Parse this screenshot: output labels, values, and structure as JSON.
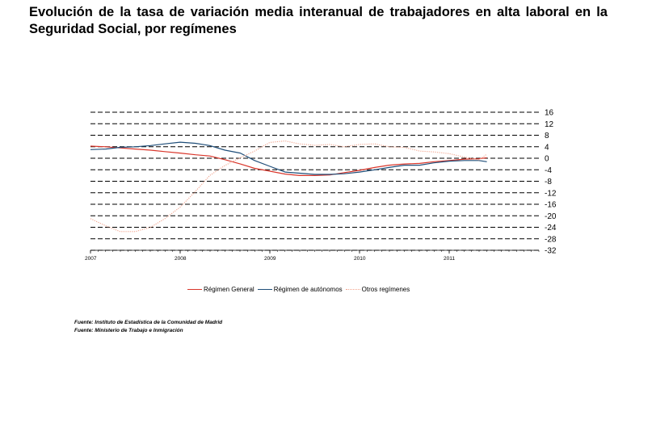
{
  "page": {
    "title": "Evolución de la tasa de variación media interanual de trabajadores en alta laboral en la Seguridad Social, por  regímenes",
    "sources": [
      "Fuente: Instituto de Estadística de la Comunidad de Madrid",
      "Fuente: Ministerio de Trabajo e Inmigración"
    ]
  },
  "chart_data": {
    "type": "line",
    "title": "",
    "xlabel": "",
    "ylabel": "",
    "ylim": [
      -32,
      16
    ],
    "yticks": [
      "16",
      "12",
      "8",
      "4",
      "0",
      "-4",
      "-8",
      "-12",
      "-16",
      "-20",
      "-24",
      "-28",
      "-32"
    ],
    "xlim": [
      2007.0,
      2012.0
    ],
    "xticks": [
      "2007",
      "2008",
      "2009",
      "2010",
      "2011"
    ],
    "grid": "horizontal dashed",
    "legend_position": "bottom",
    "series": [
      {
        "name": "Régimen General",
        "color": "#d9362b",
        "x": [
          2007.0,
          2007.17,
          2007.33,
          2007.5,
          2007.67,
          2007.83,
          2008.0,
          2008.17,
          2008.33,
          2008.5,
          2008.67,
          2008.83,
          2009.0,
          2009.17,
          2009.33,
          2009.5,
          2009.67,
          2009.83,
          2010.0,
          2010.17,
          2010.33,
          2010.5,
          2010.67,
          2010.83,
          2011.0,
          2011.17,
          2011.33,
          2011.42
        ],
        "values": [
          4.2,
          4.0,
          3.6,
          3.2,
          2.8,
          2.3,
          1.8,
          1.2,
          0.8,
          -0.5,
          -2.0,
          -3.5,
          -4.5,
          -5.5,
          -6.0,
          -6.0,
          -5.8,
          -5.0,
          -4.2,
          -3.2,
          -2.4,
          -2.0,
          -1.8,
          -1.2,
          -0.8,
          -0.3,
          -0.2,
          0.2
        ]
      },
      {
        "name": "Régimen de autónomos",
        "color": "#1f4e79",
        "x": [
          2007.0,
          2007.17,
          2007.33,
          2007.5,
          2007.67,
          2007.83,
          2008.0,
          2008.17,
          2008.33,
          2008.5,
          2008.67,
          2008.83,
          2009.0,
          2009.17,
          2009.33,
          2009.5,
          2009.67,
          2009.83,
          2010.0,
          2010.17,
          2010.33,
          2010.5,
          2010.67,
          2010.83,
          2011.0,
          2011.17,
          2011.33,
          2011.42
        ],
        "values": [
          3.0,
          3.2,
          3.8,
          4.0,
          4.4,
          5.0,
          5.6,
          5.2,
          4.4,
          2.8,
          1.8,
          -0.8,
          -2.8,
          -4.8,
          -5.2,
          -5.6,
          -5.6,
          -5.4,
          -4.8,
          -4.0,
          -3.2,
          -2.4,
          -2.4,
          -1.6,
          -1.0,
          -0.8,
          -0.8,
          -1.2
        ]
      },
      {
        "name": "Otros regímenes",
        "color": "#f2a38c",
        "x": [
          2007.0,
          2007.17,
          2007.33,
          2007.5,
          2007.67,
          2007.83,
          2008.0,
          2008.17,
          2008.33,
          2008.5,
          2008.67,
          2008.83,
          2009.0,
          2009.17,
          2009.33,
          2009.5,
          2009.67,
          2009.83,
          2010.0,
          2010.17,
          2010.33,
          2010.5,
          2010.67,
          2010.83,
          2011.0,
          2011.17,
          2011.33,
          2011.42
        ],
        "values": [
          -21.0,
          -23.5,
          -25.5,
          -25.5,
          -24.0,
          -21.0,
          -17.0,
          -11.5,
          -6.0,
          -2.5,
          0.2,
          2.5,
          5.5,
          6.0,
          5.0,
          4.5,
          4.8,
          4.0,
          4.8,
          5.0,
          4.0,
          3.8,
          2.5,
          2.2,
          1.6,
          0.4,
          -0.6,
          1.4
        ]
      }
    ]
  }
}
